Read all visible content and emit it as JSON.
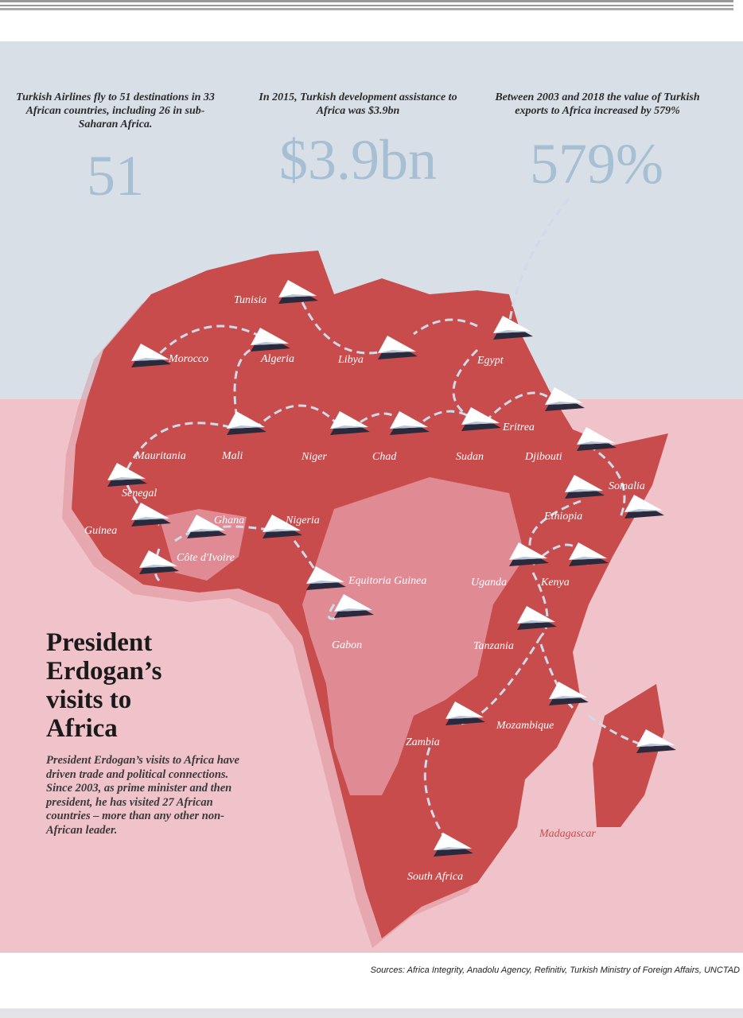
{
  "stats": [
    {
      "text": "Turkish Airlines fly to 51 destinations in 33 African countries, including 26 in sub-Saharan Africa.",
      "figure": "51"
    },
    {
      "text": "In 2015, Turkish development assistance to Africa was $3.9bn",
      "figure": "$3.9bn"
    },
    {
      "text": "Between 2003 and 2018 the value of Turkish exports to Africa increased by 579%",
      "figure": "579%"
    }
  ],
  "map": {
    "labels": [
      "Tunisia",
      "Morocco",
      "Algeria",
      "Libya",
      "Egypt",
      "Mauritania",
      "Mali",
      "Niger",
      "Chad",
      "Sudan",
      "Eritrea",
      "Djibouti",
      "Somalia",
      "Ethiopia",
      "Senegal",
      "Guinea",
      "Ghana",
      "Nigeria",
      "Côte d'Ivoire",
      "Equitoria Guinea",
      "Uganda",
      "Kenya",
      "Gabon",
      "Tanzania",
      "Mozambique",
      "Zambia",
      "South Africa",
      "Madagascar"
    ]
  },
  "article": {
    "title": "President Erdogan’s visits to Africa",
    "body": "President Erdogan’s visits to Africa have driven trade and political connections. Since 2003, as prime minister and then president, he has visited 27 African countries – more than any other non-African leader."
  },
  "footer": {
    "sources": "Sources: Africa Integrity, Anadolu Agency, Refinitiv, Turkish Ministry of Foreign Affairs, UNCTAD"
  }
}
